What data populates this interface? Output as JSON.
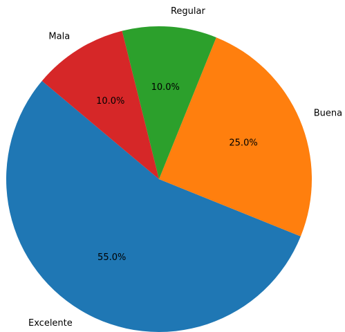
{
  "chart_data": {
    "type": "pie",
    "categories": [
      "Excelente",
      "Buena",
      "Regular",
      "Mala"
    ],
    "values": [
      55,
      25,
      10,
      10
    ],
    "value_labels": [
      "55.0%",
      "25.0%",
      "10.0%",
      "10.0%"
    ],
    "colors": [
      "#1f77b4",
      "#ff7f0e",
      "#2ca02c",
      "#d62728"
    ],
    "startangle": 140
  }
}
